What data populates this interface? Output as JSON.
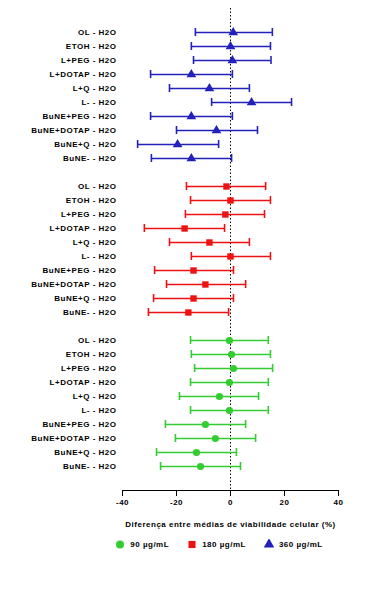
{
  "chart_data": {
    "type": "forest",
    "orientation": "horizontal",
    "x_label": "Diferença entre médias de viabilidade celular (%)",
    "xlim": [
      -40,
      40
    ],
    "xticks": [
      -40,
      -20,
      0,
      20,
      40
    ],
    "grid": false,
    "legend": "bottom",
    "ref_line": 0,
    "categories": [
      "OL - H2O",
      "ETOH - H2O",
      "L+PEG - H2O",
      "L+DOTAP - H2O",
      "L+Q - H2O",
      "L- - H2O",
      "BuNE+PEG - H2O",
      "BuNE+DOTAP - H2O",
      "BuNE+Q - H2O",
      "BuNE- - H2O"
    ],
    "series": [
      {
        "name": "90 µg/mL",
        "color": "#33cc33",
        "marker": "circle",
        "values": [
          -0.4,
          0.4,
          1.1,
          -0.4,
          -4.1,
          -0.4,
          -9.3,
          -5.6,
          -12.6,
          -11.1
        ],
        "ci_lower": [
          -14.8,
          -14.5,
          -13.3,
          -14.8,
          -18.9,
          -14.8,
          -24.1,
          -20.4,
          -27.4,
          -25.9
        ],
        "ci_upper": [
          14,
          14.8,
          15.6,
          14,
          10.4,
          14,
          5.6,
          9.3,
          2.2,
          3.7
        ]
      },
      {
        "name": "180 µg/mL",
        "color": "#ee1111",
        "marker": "square",
        "values": [
          -1.5,
          0,
          -1.9,
          -17,
          -7.8,
          0,
          -13.7,
          -9.3,
          -13.7,
          -15.6
        ],
        "ci_lower": [
          -16.3,
          -14.8,
          -16.7,
          -31.9,
          -22.6,
          -14.5,
          -28.1,
          -23.7,
          -28.5,
          -30.4
        ],
        "ci_upper": [
          13,
          14.8,
          12.6,
          -2.2,
          7,
          14.8,
          1.1,
          5.6,
          1.1,
          -0.7
        ]
      },
      {
        "name": "360 µg/mL",
        "color": "#2222bb",
        "marker": "triangle",
        "values": [
          1,
          0,
          0.7,
          -14.5,
          -7.8,
          7.8,
          -14.5,
          -5.2,
          -19.6,
          -14.5
        ],
        "ci_lower": [
          -13,
          -14.5,
          -13.7,
          -29.6,
          -22.6,
          -7,
          -29.6,
          -20,
          -34.4,
          -29.3
        ],
        "ci_upper": [
          15.5,
          14.8,
          15,
          0.7,
          7,
          22.6,
          0.7,
          10,
          -4.4,
          0.4
        ]
      }
    ]
  }
}
